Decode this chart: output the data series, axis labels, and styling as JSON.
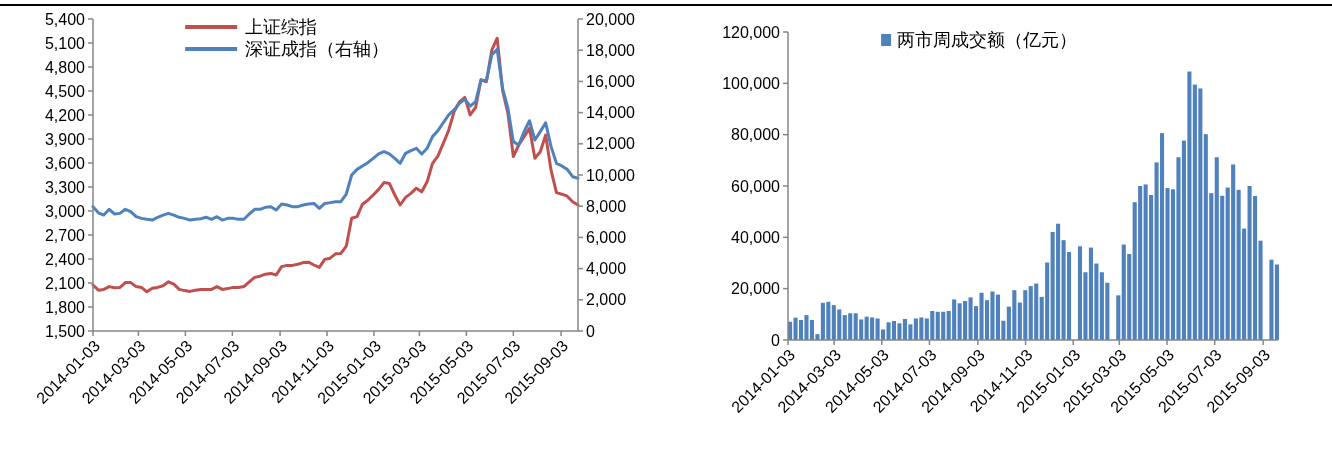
{
  "chart_data": [
    {
      "type": "line",
      "x": [
        "2014-01-03",
        "2014-01-10",
        "2014-01-17",
        "2014-01-24",
        "2014-01-31",
        "2014-02-07",
        "2014-02-14",
        "2014-02-21",
        "2014-02-28",
        "2014-03-07",
        "2014-03-14",
        "2014-03-21",
        "2014-03-28",
        "2014-04-04",
        "2014-04-11",
        "2014-04-18",
        "2014-04-25",
        "2014-05-02",
        "2014-05-09",
        "2014-05-16",
        "2014-05-23",
        "2014-05-30",
        "2014-06-06",
        "2014-06-13",
        "2014-06-20",
        "2014-06-27",
        "2014-07-04",
        "2014-07-11",
        "2014-07-18",
        "2014-07-25",
        "2014-08-01",
        "2014-08-08",
        "2014-08-15",
        "2014-08-22",
        "2014-08-29",
        "2014-09-05",
        "2014-09-12",
        "2014-09-19",
        "2014-09-26",
        "2014-10-03",
        "2014-10-10",
        "2014-10-17",
        "2014-10-24",
        "2014-10-31",
        "2014-11-07",
        "2014-11-14",
        "2014-11-21",
        "2014-11-28",
        "2014-12-05",
        "2014-12-12",
        "2014-12-19",
        "2014-12-26",
        "2015-01-02",
        "2015-01-09",
        "2015-01-16",
        "2015-01-23",
        "2015-01-30",
        "2015-02-06",
        "2015-02-13",
        "2015-02-20",
        "2015-02-27",
        "2015-03-06",
        "2015-03-13",
        "2015-03-20",
        "2015-03-27",
        "2015-04-03",
        "2015-04-10",
        "2015-04-17",
        "2015-04-24",
        "2015-05-01",
        "2015-05-08",
        "2015-05-15",
        "2015-05-22",
        "2015-05-29",
        "2015-06-05",
        "2015-06-12",
        "2015-06-19",
        "2015-06-26",
        "2015-07-03",
        "2015-07-10",
        "2015-07-17",
        "2015-07-24",
        "2015-07-31",
        "2015-08-07",
        "2015-08-14",
        "2015-08-21",
        "2015-08-28",
        "2015-09-04",
        "2015-09-11",
        "2015-09-18",
        "2015-09-25"
      ],
      "series": [
        {
          "name": "上证综指",
          "color": "#c0504d",
          "values": [
            2075,
            2010,
            2020,
            2055,
            2040,
            2045,
            2105,
            2105,
            2055,
            2045,
            1990,
            2035,
            2045,
            2065,
            2115,
            2085,
            2020,
            2005,
            1995,
            2010,
            2020,
            2020,
            2020,
            2055,
            2020,
            2030,
            2045,
            2045,
            2055,
            2115,
            2170,
            2185,
            2210,
            2220,
            2200,
            2305,
            2320,
            2320,
            2335,
            2355,
            2360,
            2325,
            2295,
            2395,
            2410,
            2465,
            2470,
            2560,
            2910,
            2930,
            3085,
            3135,
            3200,
            3270,
            3355,
            3345,
            3200,
            3075,
            3170,
            3220,
            3285,
            3240,
            3365,
            3595,
            3685,
            3845,
            4010,
            4240,
            4365,
            4420,
            4200,
            4295,
            4640,
            4615,
            5010,
            5160,
            4510,
            4220,
            3680,
            3825,
            3930,
            4035,
            3660,
            3740,
            3950,
            3510,
            3230,
            3210,
            3185,
            3115,
            3075
          ]
        },
        {
          "name": "深证成指（右轴）",
          "color": "#4f81bd",
          "axis": "y2",
          "values": [
            7970,
            7580,
            7430,
            7800,
            7500,
            7540,
            7800,
            7650,
            7330,
            7220,
            7160,
            7110,
            7290,
            7430,
            7540,
            7430,
            7290,
            7220,
            7110,
            7160,
            7200,
            7290,
            7160,
            7330,
            7110,
            7220,
            7220,
            7160,
            7160,
            7500,
            7800,
            7800,
            7930,
            7970,
            7760,
            8140,
            8080,
            7970,
            7970,
            8080,
            8140,
            8180,
            7860,
            8180,
            8230,
            8290,
            8290,
            8780,
            10000,
            10360,
            10580,
            10790,
            11070,
            11350,
            11500,
            11350,
            11070,
            10750,
            11390,
            11560,
            11710,
            11350,
            11710,
            12460,
            12840,
            13350,
            13850,
            14170,
            14590,
            14850,
            14420,
            14700,
            16090,
            16050,
            17690,
            18060,
            15560,
            14270,
            12140,
            11920,
            12780,
            13480,
            12240,
            12780,
            13350,
            11820,
            10750,
            10580,
            10360,
            9890,
            9790
          ]
        }
      ],
      "xlim": [
        "2014-01-03",
        "2015-09-25"
      ],
      "xticks": [
        "2014-01-03",
        "2014-03-03",
        "2014-05-03",
        "2014-07-03",
        "2014-09-03",
        "2014-11-03",
        "2015-01-03",
        "2015-03-03",
        "2015-05-03",
        "2015-07-03",
        "2015-09-03"
      ],
      "ylim": [
        1500,
        5400
      ],
      "yticks": [
        {
          "value": 1500,
          "label": "1,500"
        },
        {
          "value": 1800,
          "label": "1,800"
        },
        {
          "value": 2100,
          "label": "2,100"
        },
        {
          "value": 2400,
          "label": "2,400"
        },
        {
          "value": 2700,
          "label": "2,700"
        },
        {
          "value": 3000,
          "label": "3,000"
        },
        {
          "value": 3300,
          "label": "3,300"
        },
        {
          "value": 3600,
          "label": "3,600"
        },
        {
          "value": 3900,
          "label": "3,900"
        },
        {
          "value": 4200,
          "label": "4,200"
        },
        {
          "value": 4500,
          "label": "4,500"
        },
        {
          "value": 4800,
          "label": "4,800"
        },
        {
          "value": 5100,
          "label": "5,100"
        },
        {
          "value": 5400,
          "label": "5,400"
        }
      ],
      "y2lim": [
        0,
        20000
      ],
      "y2ticks": [
        0,
        {
          "value": 2000,
          "label": "2,000"
        },
        {
          "value": 4000,
          "label": "4,000"
        },
        {
          "value": 6000,
          "label": "6,000"
        },
        {
          "value": 8000,
          "label": "8,000"
        },
        {
          "value": 10000,
          "label": "10,000"
        },
        {
          "value": 12000,
          "label": "12,000"
        },
        {
          "value": 14000,
          "label": "14,000"
        },
        {
          "value": 16000,
          "label": "16,000"
        },
        {
          "value": 18000,
          "label": "18,000"
        },
        {
          "value": 20000,
          "label": "20,000"
        }
      ],
      "legend": "top left"
    },
    {
      "type": "bar",
      "x": [
        "2014-01-03",
        "2014-01-10",
        "2014-01-17",
        "2014-01-24",
        "2014-01-31",
        "2014-02-07",
        "2014-02-14",
        "2014-02-21",
        "2014-02-28",
        "2014-03-07",
        "2014-03-14",
        "2014-03-21",
        "2014-03-28",
        "2014-04-04",
        "2014-04-11",
        "2014-04-18",
        "2014-04-25",
        "2014-05-02",
        "2014-05-09",
        "2014-05-16",
        "2014-05-23",
        "2014-05-30",
        "2014-06-06",
        "2014-06-13",
        "2014-06-20",
        "2014-06-27",
        "2014-07-04",
        "2014-07-11",
        "2014-07-18",
        "2014-07-25",
        "2014-08-01",
        "2014-08-08",
        "2014-08-15",
        "2014-08-22",
        "2014-08-29",
        "2014-09-05",
        "2014-09-12",
        "2014-09-19",
        "2014-09-26",
        "2014-10-03",
        "2014-10-10",
        "2014-10-17",
        "2014-10-24",
        "2014-10-31",
        "2014-11-07",
        "2014-11-14",
        "2014-11-21",
        "2014-11-28",
        "2014-12-05",
        "2014-12-12",
        "2014-12-19",
        "2014-12-26",
        "2015-01-09",
        "2015-01-16",
        "2015-01-23",
        "2015-01-30",
        "2015-02-06",
        "2015-02-13",
        "2015-02-27",
        "2015-03-06",
        "2015-03-13",
        "2015-03-20",
        "2015-03-27",
        "2015-04-03",
        "2015-04-10",
        "2015-04-17",
        "2015-04-24",
        "2015-05-01",
        "2015-05-08",
        "2015-05-15",
        "2015-05-22",
        "2015-05-29",
        "2015-06-05",
        "2015-06-12",
        "2015-06-19",
        "2015-06-26",
        "2015-07-03",
        "2015-07-10",
        "2015-07-17",
        "2015-07-24",
        "2015-07-31",
        "2015-08-07",
        "2015-08-14",
        "2015-08-21",
        "2015-08-28",
        "2015-09-11",
        "2015-09-18"
      ],
      "series": [
        {
          "name": "两市周成交额（亿元）",
          "color": "#4f81bd",
          "values": [
            7100,
            8700,
            7800,
            9700,
            7800,
            2300,
            14500,
            14900,
            13600,
            11900,
            9700,
            10400,
            10400,
            8000,
            9100,
            8800,
            8400,
            4100,
            6900,
            7400,
            6500,
            8200,
            6100,
            8400,
            8800,
            8400,
            11300,
            11000,
            11000,
            11300,
            15800,
            14300,
            15200,
            16600,
            13200,
            18400,
            15500,
            18900,
            17700,
            7500,
            13000,
            19400,
            14600,
            19400,
            21000,
            22000,
            16800,
            30200,
            42100,
            45300,
            38900,
            34300,
            36500,
            26400,
            36000,
            29800,
            26400,
            22300,
            17400,
            37200,
            33500,
            53700,
            60000,
            60600,
            56500,
            69200,
            80600,
            59200,
            58700,
            71200,
            77700,
            104600,
            99500,
            98000,
            80200,
            57200,
            71200,
            56200,
            59400,
            68400,
            58500,
            43400,
            60000,
            56100,
            38700,
            31300,
            29400
          ]
        }
      ],
      "xlim": [
        "2014-01-03",
        "2015-09-22"
      ],
      "xticks": [
        "2014-01-03",
        "2014-03-03",
        "2014-05-03",
        "2014-07-03",
        "2014-09-03",
        "2014-11-03",
        "2015-01-03",
        "2015-03-03",
        "2015-05-03",
        "2015-07-03",
        "2015-09-03"
      ],
      "ylim": [
        0,
        120000
      ],
      "yticks": [
        0,
        {
          "value": 20000,
          "label": "20,000"
        },
        {
          "value": 40000,
          "label": "40,000"
        },
        {
          "value": 60000,
          "label": "60,000"
        },
        {
          "value": 80000,
          "label": "80,000"
        },
        {
          "value": 100000,
          "label": "100,000"
        },
        {
          "value": 120000,
          "label": "120,000"
        }
      ],
      "legend": "top left"
    }
  ]
}
